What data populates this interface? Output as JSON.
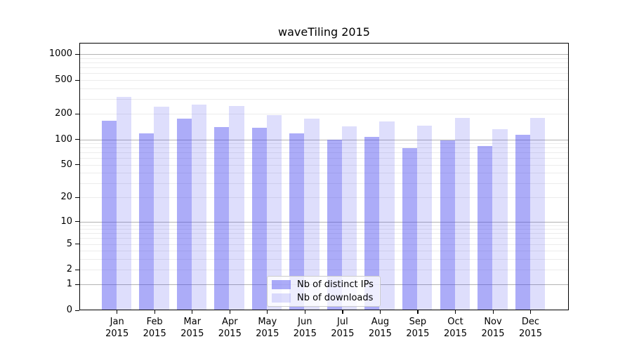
{
  "chart_data": {
    "type": "bar",
    "title": "waveTiling 2015",
    "months": [
      "Jan",
      "Feb",
      "Mar",
      "Apr",
      "May",
      "Jun",
      "Jul",
      "Aug",
      "Sep",
      "Oct",
      "Nov",
      "Dec"
    ],
    "year": "2015",
    "categories": [
      "Jan 2015",
      "Feb 2015",
      "Mar 2015",
      "Apr 2015",
      "May 2015",
      "Jun 2015",
      "Jul 2015",
      "Aug 2015",
      "Sep 2015",
      "Oct 2015",
      "Nov 2015",
      "Dec 2015"
    ],
    "series": [
      {
        "name": "Nb of distinct IPs",
        "color": "rgba(70,70,240,0.45)",
        "values": [
          165,
          118,
          175,
          140,
          136,
          118,
          100,
          107,
          78,
          98,
          83,
          113
        ]
      },
      {
        "name": "Nb of downloads",
        "color": "rgba(70,70,240,0.18)",
        "values": [
          320,
          242,
          256,
          246,
          195,
          177,
          142,
          162,
          145,
          180,
          131,
          178
        ]
      }
    ],
    "xlabel": "",
    "ylabel": "",
    "yscale": "log1p",
    "y_ticks": [
      1000,
      500,
      200,
      100,
      50,
      20,
      10,
      5,
      2,
      1,
      0
    ],
    "ylim": [
      0,
      1370
    ],
    "grid": "horizontal, minor + darker decade lines",
    "legend_position": "bottom-center-inside"
  },
  "colors": {
    "bar_distinct_ips_blended": "#ababf8",
    "bar_downloads_blended": "#ddddfc",
    "grid_major": "#b3b3b3",
    "grid_minor": "#ececec",
    "axis_frame": "#000000",
    "background": "#ffffff"
  }
}
